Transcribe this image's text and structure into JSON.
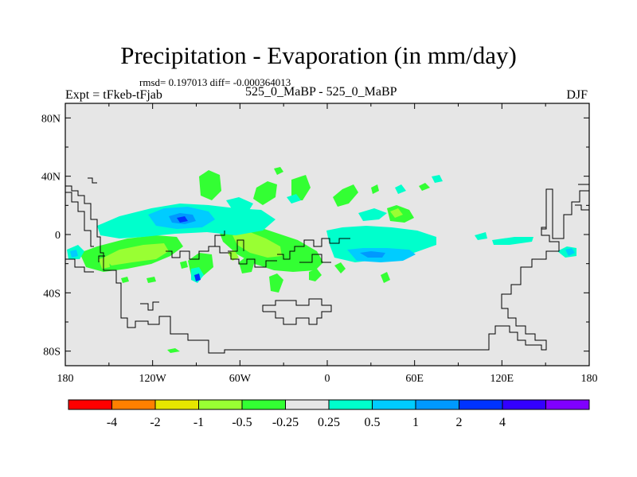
{
  "title": "Precipitation - Evaporation (in mm/day)",
  "stats": "rmsd= 0.197013 diff= -0.000364013",
  "left_label": "Expt = tFkeb-tFjab",
  "center_label": "525_0_MaBP - 525_0_MaBP",
  "right_label": "DJF",
  "map": {
    "background_color": "#e6e6e6",
    "lon_ticks": [
      "180",
      "120W",
      "60W",
      "0",
      "60E",
      "120E",
      "180"
    ],
    "lat_ticks": [
      "80N",
      "40N",
      "0",
      "40S",
      "80S"
    ]
  },
  "colorbar": {
    "colors": [
      "#ff0000",
      "#ff8000",
      "#e6e600",
      "#99ff33",
      "#33ff33",
      "#e6e6e6",
      "#00ffcc",
      "#00ccff",
      "#0099ff",
      "#0033ff",
      "#3300ff",
      "#8000ff"
    ],
    "labels": [
      "-4",
      "-2",
      "-1",
      "-0.5",
      "-0.25",
      "0.25",
      "0.5",
      "1",
      "2",
      "4"
    ]
  }
}
